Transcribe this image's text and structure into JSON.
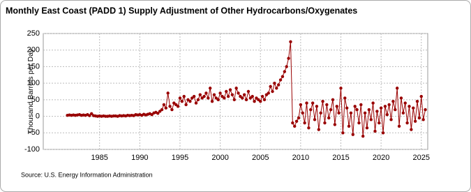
{
  "chart_data": {
    "type": "line",
    "title": "Monthly East Coast (PADD 1) Supply Adjustment of Other Hydrocarbons/Oxygenates",
    "y_label": "Thousand Barrels per Day",
    "source": "Source: U.S. Energy Information Administration",
    "x": [
      1981,
      1981.25,
      1981.5,
      1981.75,
      1982,
      1982.25,
      1982.5,
      1982.75,
      1983,
      1983.25,
      1983.5,
      1983.75,
      1984,
      1984.25,
      1984.5,
      1984.75,
      1985,
      1985.25,
      1985.5,
      1985.75,
      1986,
      1986.25,
      1986.5,
      1986.75,
      1987,
      1987.25,
      1987.5,
      1987.75,
      1988,
      1988.25,
      1988.5,
      1988.75,
      1989,
      1989.25,
      1989.5,
      1989.75,
      1990,
      1990.25,
      1990.5,
      1990.75,
      1991,
      1991.25,
      1991.5,
      1991.75,
      1992,
      1992.25,
      1992.5,
      1992.75,
      1993,
      1993.25,
      1993.5,
      1993.75,
      1994,
      1994.25,
      1994.5,
      1994.75,
      1995,
      1995.25,
      1995.5,
      1995.75,
      1996,
      1996.25,
      1996.5,
      1996.75,
      1997,
      1997.25,
      1997.5,
      1997.75,
      1998,
      1998.25,
      1998.5,
      1998.75,
      1999,
      1999.25,
      1999.5,
      1999.75,
      2000,
      2000.25,
      2000.5,
      2000.75,
      2001,
      2001.25,
      2001.5,
      2001.75,
      2002,
      2002.25,
      2002.5,
      2002.75,
      2003,
      2003.25,
      2003.5,
      2003.75,
      2004,
      2004.25,
      2004.5,
      2004.75,
      2005,
      2005.25,
      2005.5,
      2005.75,
      2006,
      2006.25,
      2006.5,
      2006.75,
      2007,
      2007.25,
      2007.5,
      2007.75,
      2008,
      2008.25,
      2008.5,
      2008.75,
      2009,
      2009.25,
      2009.5,
      2009.75,
      2010,
      2010.25,
      2010.5,
      2010.75,
      2011,
      2011.25,
      2011.5,
      2011.75,
      2012,
      2012.25,
      2012.5,
      2012.75,
      2013,
      2013.25,
      2013.5,
      2013.75,
      2014,
      2014.25,
      2014.5,
      2014.75,
      2015,
      2015.25,
      2015.5,
      2015.75,
      2016,
      2016.25,
      2016.5,
      2016.75,
      2017,
      2017.25,
      2017.5,
      2017.75,
      2018,
      2018.25,
      2018.5,
      2018.75,
      2019,
      2019.25,
      2019.5,
      2019.75,
      2020,
      2020.25,
      2020.5,
      2020.75,
      2021,
      2021.25,
      2021.5,
      2021.75,
      2022,
      2022.25,
      2022.5,
      2022.75,
      2023,
      2023.25,
      2023.5,
      2023.75,
      2024,
      2024.25,
      2024.5,
      2024.75,
      2025,
      2025.25,
      2025.5
    ],
    "series": [
      {
        "name": "East Coast",
        "color": "#990000",
        "values": [
          3,
          4,
          3,
          4,
          3,
          4,
          5,
          3,
          4,
          3,
          5,
          2,
          8,
          2,
          1,
          0,
          1,
          0,
          1,
          0,
          0,
          1,
          0,
          1,
          1,
          0,
          2,
          1,
          2,
          1,
          3,
          2,
          3,
          2,
          5,
          4,
          5,
          3,
          6,
          4,
          6,
          8,
          5,
          10,
          12,
          9,
          15,
          20,
          35,
          25,
          70,
          30,
          20,
          40,
          35,
          30,
          55,
          45,
          60,
          35,
          50,
          45,
          55,
          60,
          40,
          50,
          65,
          55,
          60,
          70,
          55,
          85,
          45,
          65,
          55,
          50,
          70,
          60,
          55,
          75,
          60,
          80,
          65,
          50,
          85,
          70,
          60,
          55,
          65,
          50,
          75,
          55,
          60,
          45,
          55,
          50,
          45,
          60,
          50,
          65,
          70,
          90,
          75,
          100,
          85,
          95,
          110,
          120,
          135,
          150,
          175,
          225,
          -20,
          -30,
          -15,
          -5,
          35,
          10,
          -20,
          40,
          -35,
          20,
          40,
          -10,
          30,
          -40,
          10,
          45,
          -20,
          35,
          -5,
          20,
          50,
          -25,
          30,
          10,
          85,
          -50,
          55,
          25,
          -30,
          10,
          -55,
          30,
          20,
          -20,
          35,
          -60,
          10,
          -35,
          20,
          -10,
          40,
          -45,
          15,
          -20,
          25,
          -50,
          30,
          5,
          35,
          -10,
          45,
          20,
          85,
          -30,
          55,
          10,
          40,
          -20,
          30,
          -40,
          25,
          -15,
          45,
          -5,
          60,
          -10,
          20
        ]
      }
    ],
    "xlim": [
      1978,
      2025.8
    ],
    "xticks": [
      1985,
      1990,
      1995,
      2000,
      2005,
      2010,
      2015,
      2020,
      2025
    ],
    "ylim": [
      -100,
      250
    ],
    "yticks": [
      -100,
      -50,
      0,
      50,
      100,
      150,
      200,
      250
    ],
    "grid": true
  }
}
